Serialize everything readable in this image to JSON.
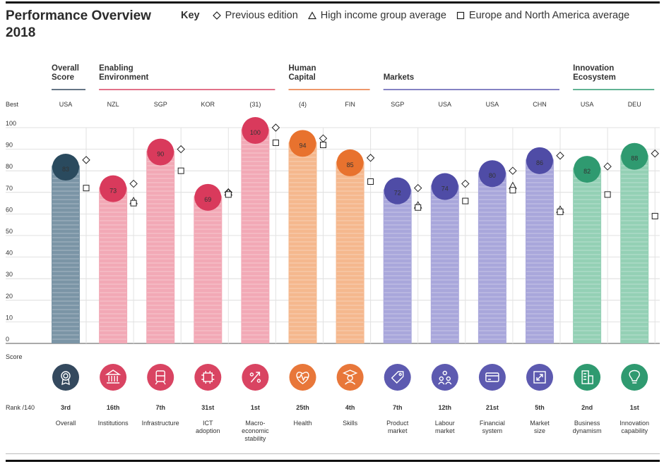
{
  "header": {
    "title": "Performance Overview 2018",
    "key_label": "Key",
    "legend": [
      {
        "shape": "diamond",
        "label": "Previous edition"
      },
      {
        "shape": "triangle",
        "label": "High income group average"
      },
      {
        "shape": "square",
        "label": "Europe and North America average"
      }
    ]
  },
  "labels": {
    "best_row": "Best",
    "score_axis": "Score",
    "rank_row": "Rank /140"
  },
  "chart_data": {
    "type": "bar",
    "title": "Performance Overview 2018",
    "ylabel": "Score",
    "ylim": [
      0,
      100
    ],
    "yticks": [
      0,
      10,
      20,
      30,
      40,
      50,
      60,
      70,
      80,
      90,
      100
    ],
    "groups": [
      {
        "label_lines": [
          "Overall",
          "Score"
        ],
        "color": "#34495e",
        "start": 0,
        "end": 0
      },
      {
        "label_lines": [
          "Enabling",
          "Environment"
        ],
        "color": "#d94462",
        "start": 1,
        "end": 4
      },
      {
        "label_lines": [
          "Human",
          "Capital"
        ],
        "color": "#e8773a",
        "start": 5,
        "end": 6
      },
      {
        "label_lines": [
          "Markets"
        ],
        "color": "#5d5ab0",
        "start": 7,
        "end": 10
      },
      {
        "label_lines": [
          "Innovation",
          "Ecosystem"
        ],
        "color": "#2f9a70",
        "start": 11,
        "end": 12
      }
    ],
    "pillars": [
      {
        "best": "USA",
        "score": 83,
        "previous": 85,
        "high_income": null,
        "europe_na": 72,
        "rank": "3rd",
        "name_lines": [
          "Overall"
        ],
        "icon": "medal-icon",
        "bar_color": "#7b95a6",
        "circle_color": "#2a4a5e",
        "ecolor": "#34495e"
      },
      {
        "best": "NZL",
        "score": 73,
        "previous": 74,
        "high_income": 66,
        "europe_na": 65,
        "rank": "16th",
        "name_lines": [
          "Institutions"
        ],
        "icon": "institution-icon",
        "bar_color": "#f2a9b6",
        "circle_color": "#d93a5c",
        "ecolor": "#d94462"
      },
      {
        "best": "SGP",
        "score": 90,
        "previous": 90,
        "high_income": null,
        "europe_na": 80,
        "rank": "7th",
        "name_lines": [
          "Infrastructure"
        ],
        "icon": "train-icon",
        "bar_color": "#f2a9b6",
        "circle_color": "#d93a5c",
        "ecolor": "#d94462"
      },
      {
        "best": "KOR",
        "score": 69,
        "previous": 70,
        "high_income": 70,
        "europe_na": 69,
        "rank": "31st",
        "name_lines": [
          "ICT",
          "adoption"
        ],
        "icon": "chip-icon",
        "bar_color": "#f2a9b6",
        "circle_color": "#d93a5c",
        "ecolor": "#d94462"
      },
      {
        "best": "(31)",
        "score": 100,
        "previous": 100,
        "high_income": null,
        "europe_na": 93,
        "rank": "1st",
        "name_lines": [
          "Macro-",
          "economic",
          "stability"
        ],
        "icon": "percent-icon",
        "bar_color": "#f2a9b6",
        "circle_color": "#d93a5c",
        "ecolor": "#d94462"
      },
      {
        "best": "(4)",
        "score": 94,
        "previous": 95,
        "high_income": null,
        "europe_na": 92,
        "rank": "25th",
        "name_lines": [
          "Health"
        ],
        "icon": "heart-icon",
        "bar_color": "#f5b88e",
        "circle_color": "#e8722e",
        "ecolor": "#e8773a"
      },
      {
        "best": "FIN",
        "score": 85,
        "previous": 86,
        "high_income": null,
        "europe_na": 75,
        "rank": "4th",
        "name_lines": [
          "Skills"
        ],
        "icon": "graduate-icon",
        "bar_color": "#f5b88e",
        "circle_color": "#e8722e",
        "ecolor": "#e8773a"
      },
      {
        "best": "SGP",
        "score": 72,
        "previous": 72,
        "high_income": 64,
        "europe_na": 63,
        "rank": "7th",
        "name_lines": [
          "Product",
          "market"
        ],
        "icon": "tag-icon",
        "bar_color": "#a9a7db",
        "circle_color": "#4f4ca6",
        "ecolor": "#5d5ab0"
      },
      {
        "best": "USA",
        "score": 74,
        "previous": 74,
        "high_income": null,
        "europe_na": 66,
        "rank": "12th",
        "name_lines": [
          "Labour",
          "market"
        ],
        "icon": "people-icon",
        "bar_color": "#a9a7db",
        "circle_color": "#4f4ca6",
        "ecolor": "#5d5ab0"
      },
      {
        "best": "USA",
        "score": 80,
        "previous": 80,
        "high_income": 73,
        "europe_na": 71,
        "rank": "21st",
        "name_lines": [
          "Financial",
          "system"
        ],
        "icon": "card-icon",
        "bar_color": "#a9a7db",
        "circle_color": "#4f4ca6",
        "ecolor": "#5d5ab0"
      },
      {
        "best": "CHN",
        "score": 86,
        "previous": 87,
        "high_income": 62,
        "europe_na": 61,
        "rank": "5th",
        "name_lines": [
          "Market",
          "size"
        ],
        "icon": "expand-icon",
        "bar_color": "#a9a7db",
        "circle_color": "#4f4ca6",
        "ecolor": "#5d5ab0"
      },
      {
        "best": "USA",
        "score": 82,
        "previous": 82,
        "high_income": null,
        "europe_na": 69,
        "rank": "2nd",
        "name_lines": [
          "Business",
          "dynamism"
        ],
        "icon": "building-icon",
        "bar_color": "#94d0b5",
        "circle_color": "#2f9a70",
        "ecolor": "#2f9a70"
      },
      {
        "best": "DEU",
        "score": 88,
        "previous": 88,
        "high_income": null,
        "europe_na": 59,
        "rank": "1st",
        "name_lines": [
          "Innovation",
          "capability"
        ],
        "icon": "lightbulb-icon",
        "bar_color": "#94d0b5",
        "circle_color": "#2f9a70",
        "ecolor": "#2f9a70"
      }
    ]
  }
}
